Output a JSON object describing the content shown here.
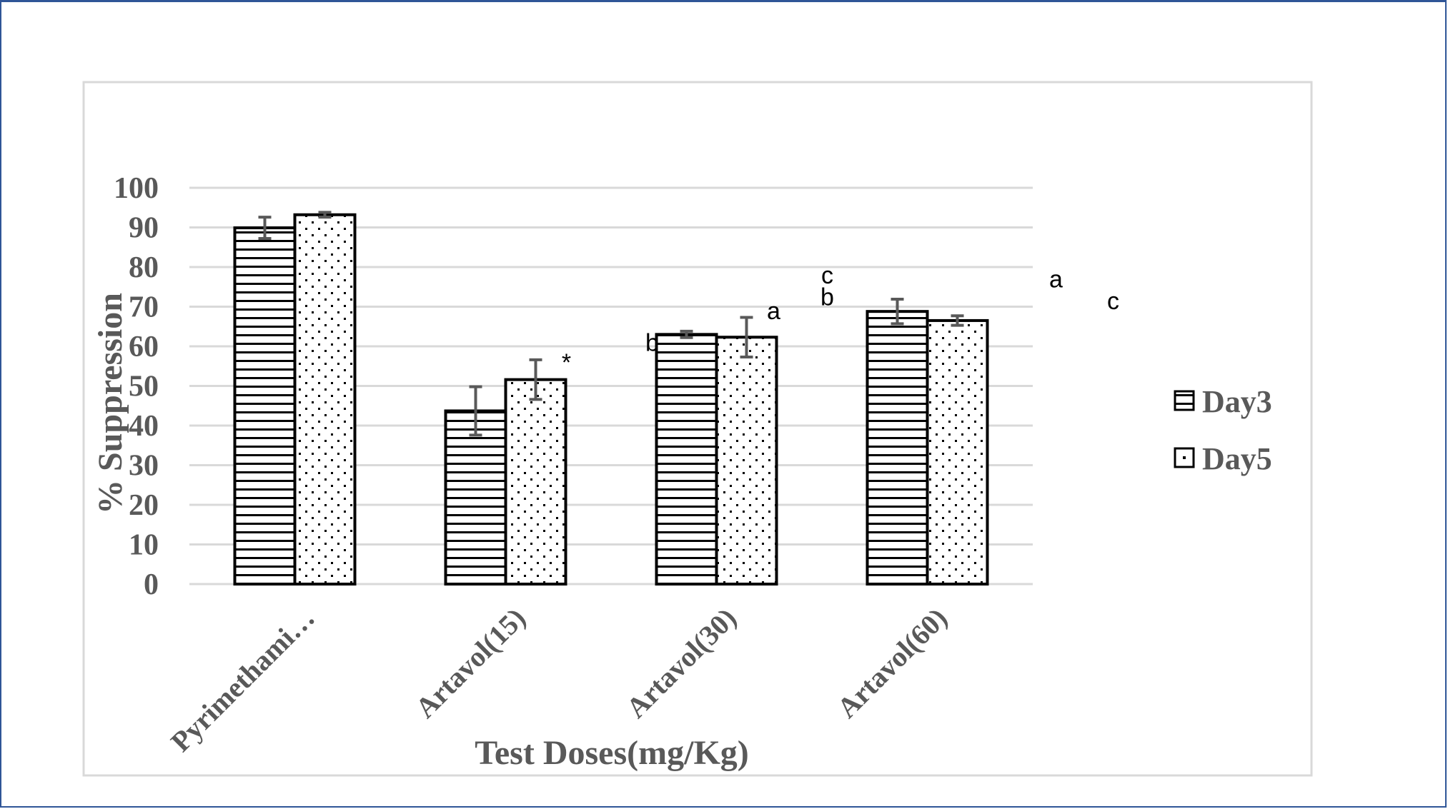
{
  "chart_data": {
    "type": "bar",
    "title": "",
    "xlabel": "Test Doses(mg/Kg)",
    "ylabel": "% Suppression",
    "ylim": [
      0,
      100
    ],
    "yticks": [
      "0",
      "10",
      "20",
      "30",
      "40",
      "50",
      "60",
      "70",
      "80",
      "90",
      "100"
    ],
    "grid": true,
    "legend_position": "right",
    "categories": [
      "Pyrimethami…",
      "Artavol(15)",
      "Artavol(30)",
      "Artavol(60)"
    ],
    "series": [
      {
        "name": "Day3",
        "pattern": "horizontal-lines",
        "values": [
          89.9,
          43.7,
          63.0,
          68.8
        ],
        "errors": [
          2.7,
          6.1,
          0.8,
          3.1
        ]
      },
      {
        "name": "Day5",
        "pattern": "dots",
        "values": [
          93.2,
          51.6,
          62.3,
          66.5
        ],
        "errors": [
          0.6,
          5.0,
          5.0,
          1.2
        ]
      }
    ],
    "annotations": [
      {
        "text": "*",
        "category": 1,
        "value": 56.0
      },
      {
        "text": "b",
        "category": 2,
        "value": 61.0
      },
      {
        "text": "a",
        "category": 2,
        "value": 69.0
      },
      {
        "text": "c",
        "category": 2,
        "value": 78.0
      },
      {
        "text": "b",
        "category": 2,
        "value": 72.5
      },
      {
        "text": "a",
        "category": 3,
        "value": 77.0
      },
      {
        "text": "c",
        "category": 3,
        "value": 71.5
      }
    ],
    "colors": {
      "bar_stroke": "#000000",
      "grid": "#d9d9d9",
      "error_bar": "#595959",
      "text": "#595959"
    }
  }
}
